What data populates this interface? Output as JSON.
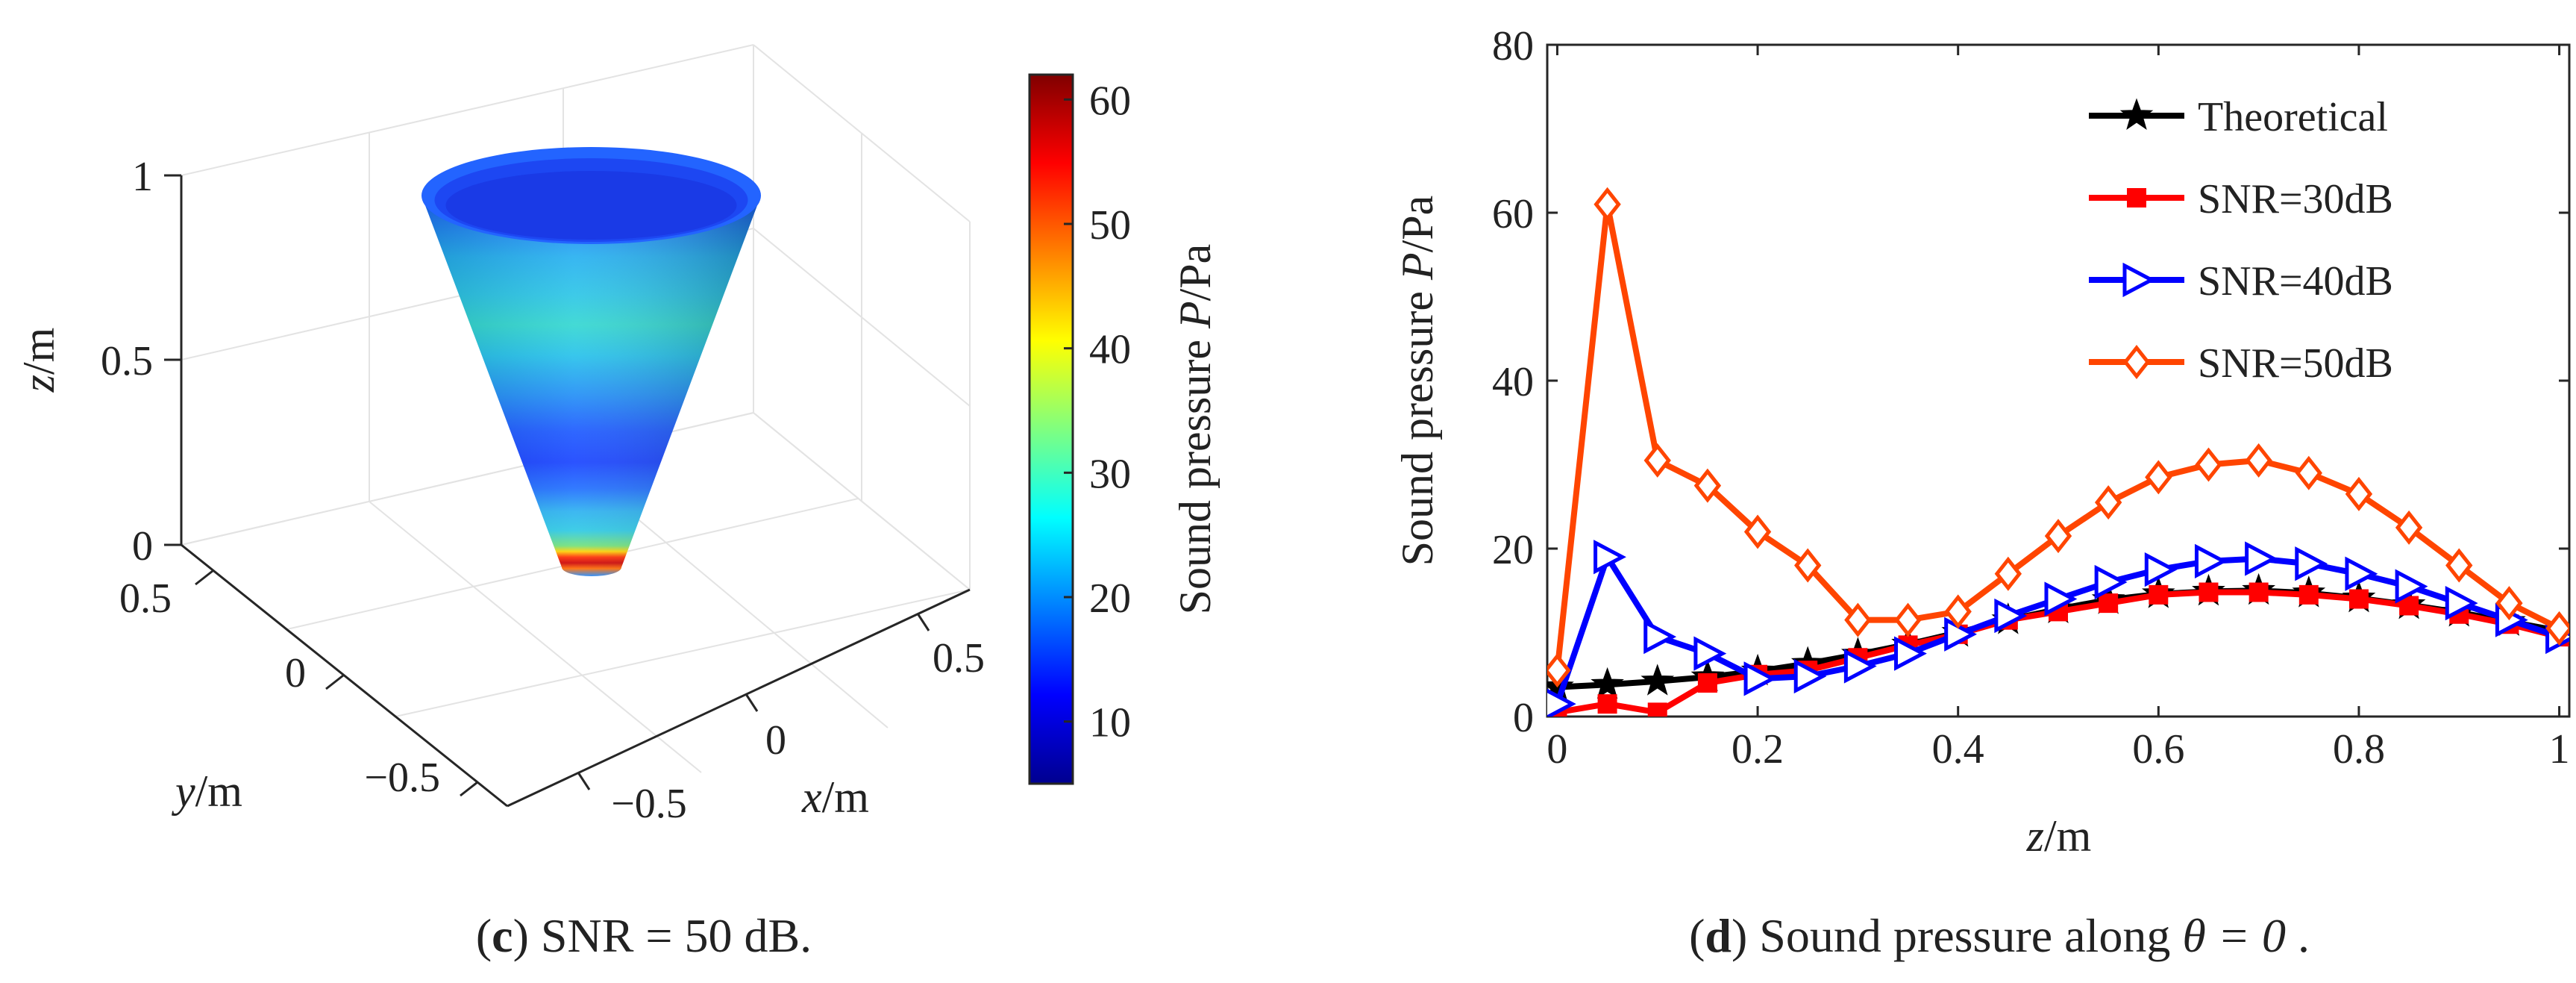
{
  "left_panel": {
    "caption_letter": "c",
    "caption_rest": " SNR = 50 dB.",
    "z_ticks": [
      "0",
      "0.5",
      "1"
    ],
    "y_ticks": [
      "0.5",
      "0",
      "−0.5"
    ],
    "x_ticks": [
      "−0.5",
      "0",
      "0.5"
    ],
    "x_label": {
      "var": "x",
      "unit": "/m"
    },
    "y_label": {
      "var": "y",
      "unit": "/m"
    },
    "z_label": {
      "var": "z",
      "unit": "/m"
    },
    "colorbar": {
      "range": [
        5,
        62
      ],
      "ticks": [
        "10",
        "20",
        "30",
        "40",
        "50",
        "60"
      ],
      "label_prefix": "Sound pressure ",
      "label_var": "P",
      "label_unit": "/Pa"
    }
  },
  "right_panel": {
    "caption_letter": "d",
    "caption_rest": " Sound pressure along ",
    "caption_math": "θ = 0",
    "caption_end": " .",
    "x_label": {
      "var": "z",
      "unit": "/m"
    },
    "y_label_prefix": "Sound pressure ",
    "y_label_var": "P",
    "y_label_unit": "/Pa",
    "x_ticks": [
      "0",
      "0.2",
      "0.4",
      "0.6",
      "0.8",
      "1"
    ],
    "y_ticks": [
      "0",
      "20",
      "40",
      "60",
      "80"
    ]
  },
  "chart_data": {
    "type": "line",
    "xlim": [
      -0.01,
      1.01
    ],
    "ylim": [
      0,
      80
    ],
    "xlabel": "z/m",
    "ylabel": "Sound pressure P/Pa",
    "legend_position": "top-right",
    "x": [
      0,
      0.05,
      0.1,
      0.15,
      0.2,
      0.25,
      0.3,
      0.35,
      0.4,
      0.45,
      0.5,
      0.55,
      0.6,
      0.65,
      0.7,
      0.75,
      0.8,
      0.85,
      0.9,
      0.95,
      1.0
    ],
    "series": [
      {
        "name": "Theoretical",
        "color": "#000000",
        "marker": "star",
        "values": [
          3.5,
          3.8,
          4.2,
          4.7,
          5.4,
          6.3,
          7.4,
          8.6,
          10.0,
          11.5,
          12.8,
          13.9,
          14.6,
          14.9,
          15.0,
          14.7,
          14.1,
          13.3,
          12.4,
          11.3,
          10.2
        ]
      },
      {
        "name": "SNR=30dB",
        "color": "#ff0000",
        "marker": "square",
        "values": [
          0.5,
          1.5,
          0.5,
          4.0,
          5.0,
          5.5,
          7.0,
          8.5,
          9.8,
          11.5,
          12.5,
          13.5,
          14.5,
          14.8,
          14.8,
          14.5,
          14.0,
          13.2,
          12.2,
          11.0,
          9.5
        ]
      },
      {
        "name": "SNR=40dB",
        "color": "#0000ff",
        "marker": "triangle-right",
        "values": [
          1.5,
          19.0,
          9.5,
          7.5,
          4.5,
          4.8,
          6.0,
          7.5,
          9.8,
          12.0,
          14.0,
          16.0,
          17.5,
          18.5,
          18.8,
          18.2,
          17.0,
          15.5,
          13.5,
          11.5,
          9.5
        ]
      },
      {
        "name": "SNR=50dB",
        "color": "#ff4500",
        "marker": "diamond",
        "values": [
          5.5,
          61.0,
          30.5,
          27.5,
          22.0,
          18.0,
          11.5,
          11.5,
          12.5,
          17.0,
          21.5,
          25.5,
          28.5,
          30.0,
          30.5,
          29.0,
          26.5,
          22.5,
          18.0,
          13.5,
          10.5
        ]
      }
    ]
  },
  "colors": {
    "theoretical": "#000000",
    "snr30": "#ff0000",
    "snr40": "#0000ff",
    "snr50": "#ff4500"
  }
}
